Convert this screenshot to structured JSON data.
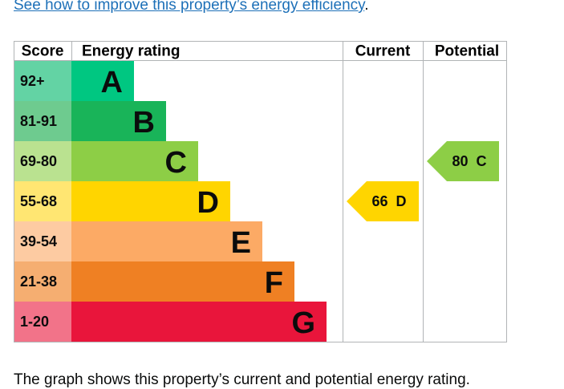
{
  "link": {
    "text": "See how to improve this property’s energy efficiency",
    "after": "."
  },
  "headers": {
    "score": "Score",
    "rating": "Energy rating",
    "current": "Current",
    "potential": "Potential"
  },
  "bands": [
    {
      "score": "92+",
      "letter": "A",
      "color": "#00c781",
      "score_color": "#63d3a4"
    },
    {
      "score": "81-91",
      "letter": "B",
      "color": "#19b459",
      "score_color": "#6ecb8f"
    },
    {
      "score": "69-80",
      "letter": "C",
      "color": "#8dce46",
      "score_color": "#bae290"
    },
    {
      "score": "55-68",
      "letter": "D",
      "color": "#ffd500",
      "score_color": "#ffe672"
    },
    {
      "score": "39-54",
      "letter": "E",
      "color": "#fcaa65",
      "score_color": "#fdcba2"
    },
    {
      "score": "21-38",
      "letter": "F",
      "color": "#ef8023",
      "score_color": "#f5ae71"
    },
    {
      "score": "1-20",
      "letter": "G",
      "color": "#e9153b",
      "score_color": "#f27389"
    }
  ],
  "current": {
    "value": 66,
    "letter": "D"
  },
  "potential": {
    "value": 80,
    "letter": "C"
  },
  "footer": "The graph shows this property’s current and potential energy rating."
}
